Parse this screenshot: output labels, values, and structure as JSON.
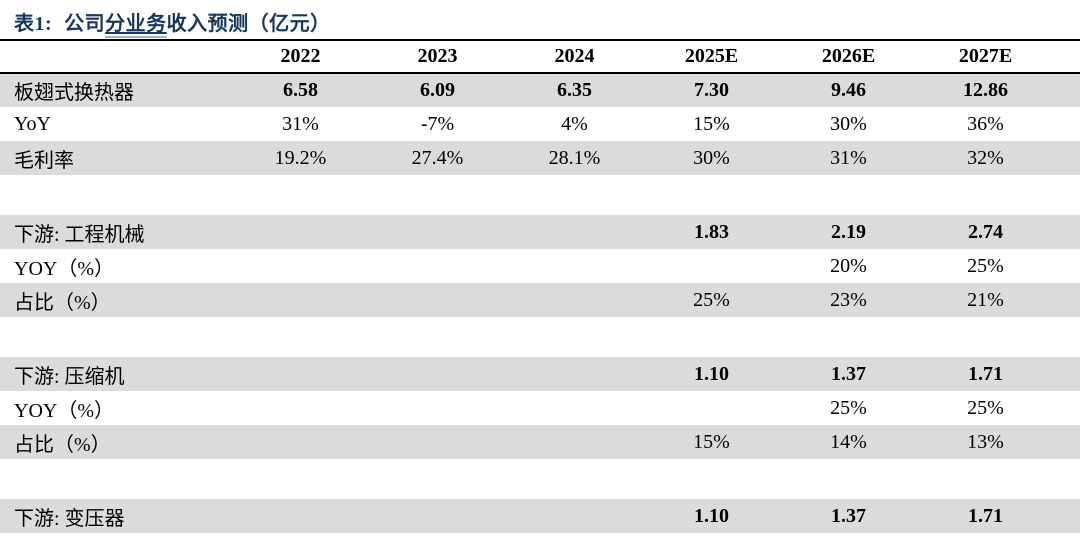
{
  "title": {
    "prefix": "表1:",
    "part1": "公司",
    "underlined": "分业务",
    "part2": "收入预测（亿元）",
    "title_color": "#17375E",
    "underline_color": "#95B3D7"
  },
  "table": {
    "columns": [
      "2022",
      "2023",
      "2024",
      "2025E",
      "2026E",
      "2027E"
    ],
    "rows": [
      {
        "label": "板翅式换热器",
        "cells": [
          "6.58",
          "6.09",
          "6.35",
          "7.30",
          "9.46",
          "12.86"
        ],
        "shaded": true,
        "bold_values": true
      },
      {
        "label": "YoY",
        "cells": [
          "31%",
          "-7%",
          "4%",
          "15%",
          "30%",
          "36%"
        ],
        "shaded": false,
        "bold_values": false
      },
      {
        "label": "毛利率",
        "cells": [
          "19.2%",
          "27.4%",
          "28.1%",
          "30%",
          "31%",
          "32%"
        ],
        "shaded": true,
        "bold_values": false
      },
      {
        "label": "下游: 工程机械",
        "cells": [
          "",
          "",
          "",
          "1.83",
          "2.19",
          "2.74"
        ],
        "shaded": true,
        "bold_values": true
      },
      {
        "label": "YOY（%）",
        "cells": [
          "",
          "",
          "",
          "",
          "20%",
          "25%"
        ],
        "shaded": false,
        "bold_values": false
      },
      {
        "label": "占比（%）",
        "cells": [
          "",
          "",
          "",
          "25%",
          "23%",
          "21%"
        ],
        "shaded": true,
        "bold_values": false
      },
      {
        "label": "下游: 压缩机",
        "cells": [
          "",
          "",
          "",
          "1.10",
          "1.37",
          "1.71"
        ],
        "shaded": true,
        "bold_values": true
      },
      {
        "label": "YOY（%）",
        "cells": [
          "",
          "",
          "",
          "",
          "25%",
          "25%"
        ],
        "shaded": false,
        "bold_values": false
      },
      {
        "label": "占比（%）",
        "cells": [
          "",
          "",
          "",
          "15%",
          "14%",
          "13%"
        ],
        "shaded": true,
        "bold_values": false
      },
      {
        "label": "下游: 变压器",
        "cells": [
          "",
          "",
          "",
          "1.10",
          "1.37",
          "1.71"
        ],
        "shaded": true,
        "bold_values": true
      }
    ],
    "colors": {
      "shaded_row": "#DBDBDB",
      "rule": "#000000",
      "text": "#000000"
    }
  }
}
